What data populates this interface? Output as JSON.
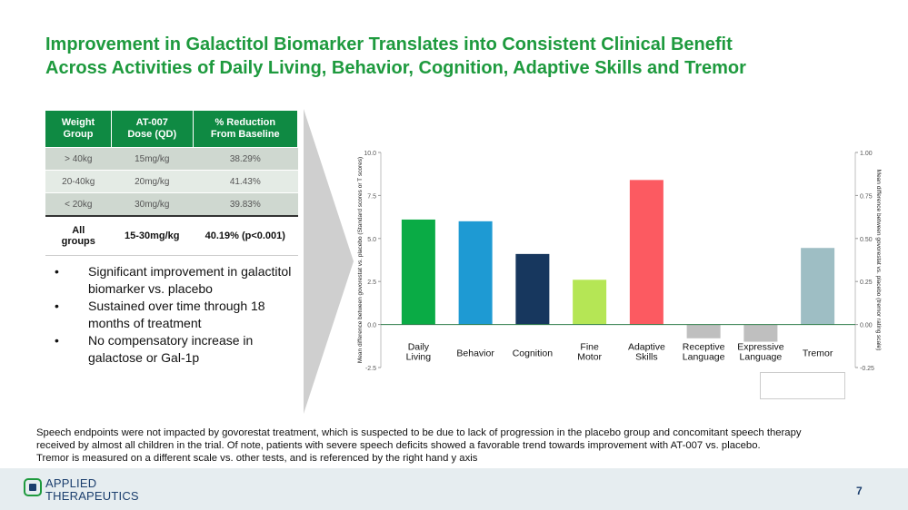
{
  "title": {
    "line1": "Improvement in Galactitol Biomarker Translates into Consistent Clinical Benefit",
    "line2": "Across Activities of Daily Living, Behavior, Cognition, Adaptive Skills and Tremor"
  },
  "dose_table": {
    "headers": [
      "Weight\nGroup",
      "AT-007\nDose (QD)",
      "% Reduction\nFrom Baseline"
    ],
    "rows": [
      [
        "> 40kg",
        "15mg/kg",
        "38.29%"
      ],
      [
        "20-40kg",
        "20mg/kg",
        "41.43%"
      ],
      [
        "< 20kg",
        "30mg/kg",
        "39.83%"
      ]
    ],
    "total": [
      "All\ngroups",
      "15-30mg/kg",
      "40.19% (p<0.001)"
    ]
  },
  "bullets": [
    "Significant  improvement in galactitol biomarker vs. placebo",
    "Sustained over time through 18 months of treatment",
    "No compensatory increase in galactose or Gal-1p"
  ],
  "chart_data": {
    "type": "bar",
    "categories": [
      "Daily\nLiving",
      "Behavior",
      "Cognition",
      "Fine\nMotor",
      "Adaptive\nSkills",
      "Receptive\nLanguage",
      "Expressive\nLanguage",
      "Tremor"
    ],
    "series": [
      {
        "values": [
          6.1,
          6.0,
          4.1,
          2.6,
          8.4,
          -0.8,
          -1.0,
          null
        ],
        "axis": "left"
      },
      {
        "values": [
          null,
          null,
          null,
          null,
          null,
          null,
          null,
          0.445
        ],
        "axis": "right"
      }
    ],
    "colors": [
      "#0aab45",
      "#1e9ad3",
      "#17375e",
      "#b5e655",
      "#fc5a61",
      "#bfbfbf",
      "#bfbfbf",
      "#9ebec4"
    ],
    "ylabel": "Mean difference between govorestat vs. placebo (Standard scores or T scores)",
    "y2label": "Mean difference between govorestat vs. placebo (tremor rating scale)",
    "yticks": [
      "10.0",
      "7.5",
      "5.0",
      "2.5",
      "0.0",
      "-2.5"
    ],
    "y2ticks": [
      "1.00",
      "0.75",
      "0.50",
      "0.25",
      "0.00",
      "-0.25"
    ],
    "ylim": [
      -2.5,
      10
    ],
    "y2lim": [
      -0.25,
      1.0
    ]
  },
  "footnote": {
    "line1": "Speech endpoints were not impacted by govorestat treatment, which is suspected to be due to lack of progression in the placebo group and concomitant speech therapy",
    "line2": "received by almost all children in the trial. Of note, patients with severe speech deficits showed a favorable trend towards improvement with AT-007 vs. placebo.",
    "line3": "Tremor is measured on a different scale vs.  other tests, and is referenced by the right hand y axis"
  },
  "footer": {
    "logo_line1": "APPLIED",
    "logo_line2": "THERAPEUTICS",
    "page_number": "7"
  }
}
